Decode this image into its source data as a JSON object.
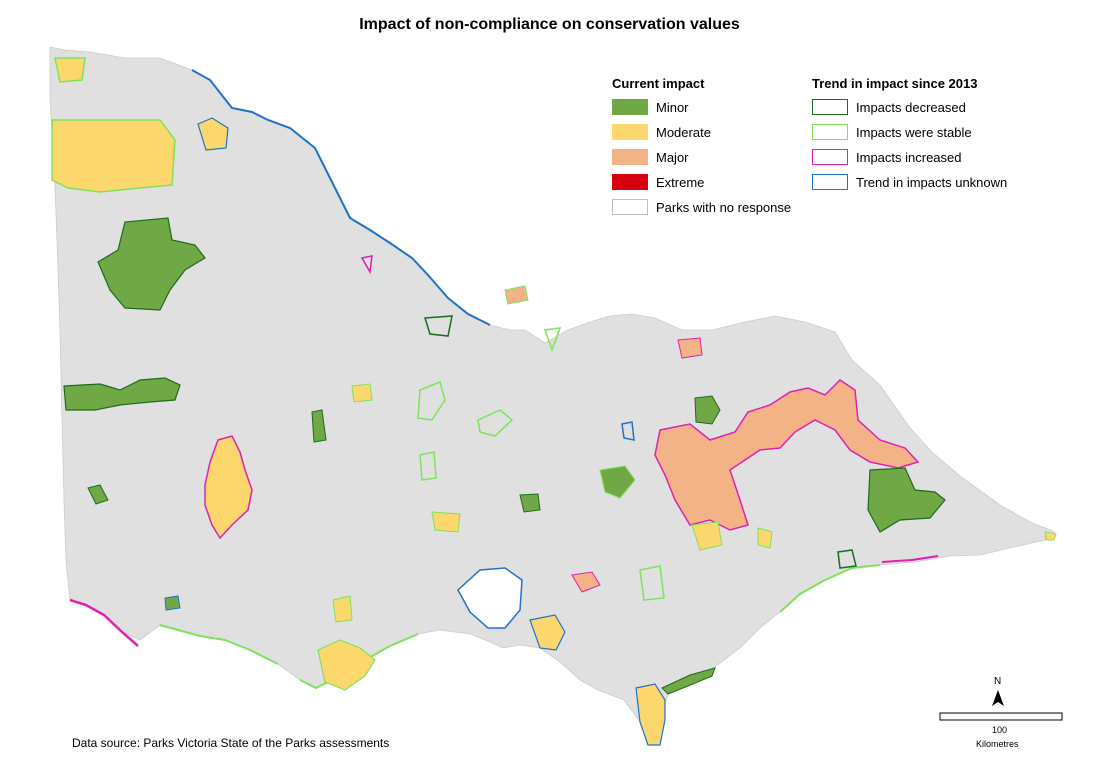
{
  "title": "Impact of non-compliance on conservation values",
  "legend": {
    "current_impact": {
      "heading": "Current impact",
      "items": [
        {
          "label": "Minor",
          "fill": "#70a845",
          "stroke": "#70a845"
        },
        {
          "label": "Moderate",
          "fill": "#fcd76e",
          "stroke": "#fcd76e"
        },
        {
          "label": "Major",
          "fill": "#f4b386",
          "stroke": "#f4b386"
        },
        {
          "label": "Extreme",
          "fill": "#d7000f",
          "stroke": "#d7000f"
        },
        {
          "label": "Parks with no response",
          "fill": "#ffffff",
          "stroke": "#bfbfbf"
        }
      ]
    },
    "trend": {
      "heading": "Trend in impact since 2013",
      "items": [
        {
          "label": "Impacts decreased",
          "stroke": "#1e6b1e"
        },
        {
          "label": "Impacts were stable",
          "stroke": "#7ee35a"
        },
        {
          "label": "Impacts increased",
          "stroke": "#e020b0"
        },
        {
          "label": "Trend in impacts unknown",
          "stroke": "#1f73c6"
        }
      ]
    }
  },
  "scale": {
    "value": "100",
    "unit": "Kilometres"
  },
  "north": "N",
  "source": "Data source: Parks Victoria State of the Parks assessments",
  "colors": {
    "land": "#e0e0e0",
    "minor": "#70a845",
    "moderate": "#fcd76e",
    "major": "#f4b386",
    "no_response": "#ffffff",
    "decreased": "#1e6b1e",
    "stable": "#7ee35a",
    "increased": "#e020b0",
    "unknown": "#1f73c6",
    "murray_river": "#1f73c6"
  }
}
